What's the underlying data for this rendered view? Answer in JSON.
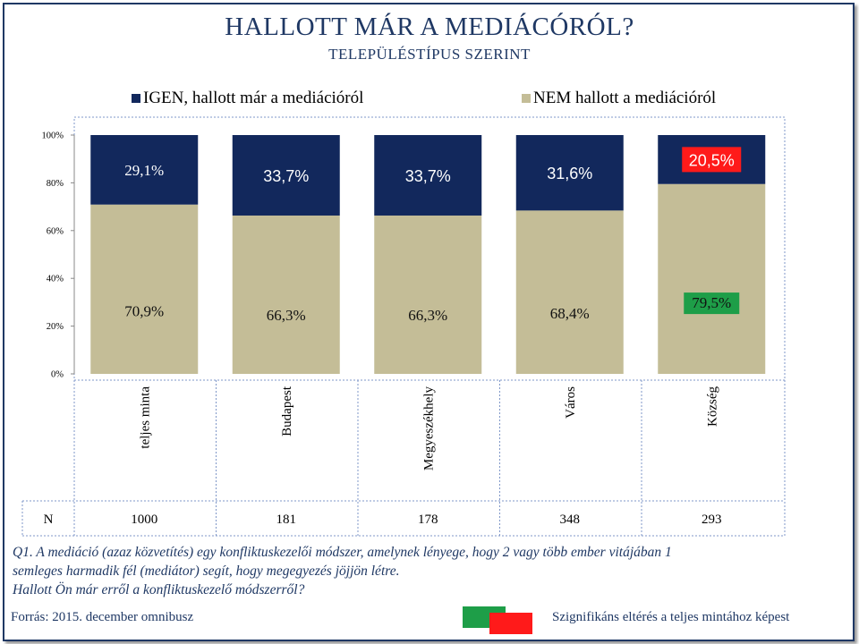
{
  "header": {
    "title": "HALLOTT MÁR A MEDIÁCÓRÓL?",
    "subtitle": "TELEPÜLÉSTÍPUS SZERINT"
  },
  "chart_data": {
    "type": "bar",
    "stacked": true,
    "categories": [
      "teljes minta",
      "Budapest",
      "Megyeszékhely",
      "Város",
      "Község"
    ],
    "series": [
      {
        "name": "NEM hallott a mediációról",
        "color": "#c4bd97",
        "values": [
          70.9,
          66.3,
          66.3,
          68.4,
          79.5
        ],
        "labels": [
          "70,9%",
          "66,3%",
          "66,3%",
          "68,4%",
          "79,5%"
        ]
      },
      {
        "name": "IGEN, hallott már a mediációról",
        "color": "#12285c",
        "values": [
          29.1,
          33.7,
          33.7,
          31.6,
          20.5
        ],
        "labels": [
          "29,1%",
          "33,7%",
          "33,7%",
          "31,6%",
          "20,5%"
        ]
      }
    ],
    "highlights": [
      {
        "series": 0,
        "category": 4,
        "color": "#1e9e48"
      },
      {
        "series": 1,
        "category": 4,
        "color": "#ff1a1a"
      }
    ],
    "y_ticks": [
      "0%",
      "20%",
      "40%",
      "60%",
      "80%",
      "100%"
    ],
    "ylim": [
      0,
      100
    ],
    "legend_position": "top"
  },
  "table": {
    "row_label": "N",
    "values": [
      "1000",
      "181",
      "178",
      "348",
      "293"
    ]
  },
  "note_lines": [
    "Q1. A mediáció (azaz közvetítés) egy konfliktuskezelői módszer, amelynek lényege, hogy 2 vagy több ember vitájában 1",
    "semleges harmadik fél (mediátor) segít, hogy megegyezés jöjjön létre.",
    "Hallott Ön már erről a konfliktuskezelő módszerről?"
  ],
  "footer": {
    "source": "Forrás: 2015. december omnibusz",
    "significance_label": "Szignifikáns eltérés a teljes mintához képest"
  }
}
